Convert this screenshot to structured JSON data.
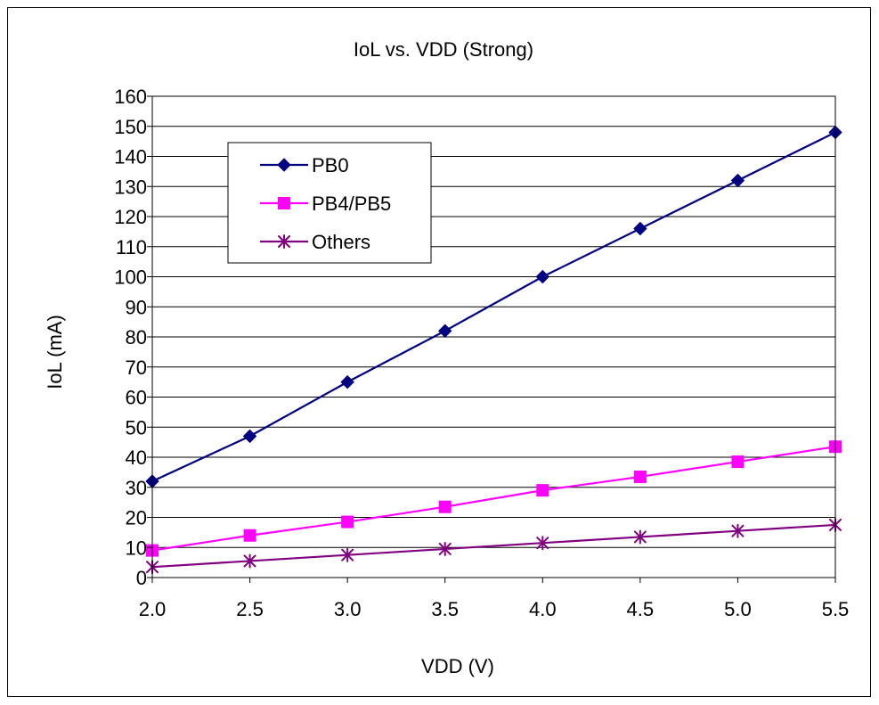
{
  "chart_data": {
    "type": "line",
    "title": "IoL vs. VDD (Strong)",
    "xlabel": "VDD (V)",
    "ylabel": "IoL (mA)",
    "x": [
      2.0,
      2.5,
      3.0,
      3.5,
      4.0,
      4.5,
      5.0,
      5.5
    ],
    "x_tick_labels": [
      "2.0",
      "2.5",
      "3.0",
      "3.5",
      "4.0",
      "4.5",
      "5.0",
      "5.5"
    ],
    "xlim": [
      2.0,
      5.5
    ],
    "ylim": [
      0,
      160
    ],
    "y_ticks": [
      0,
      10,
      20,
      30,
      40,
      50,
      60,
      70,
      80,
      90,
      100,
      110,
      120,
      130,
      140,
      150,
      160
    ],
    "grid": "horizontal",
    "legend_position": "top-left inside plot",
    "series": [
      {
        "name": "PB0",
        "color": "#000080",
        "marker": "diamond",
        "values": [
          32,
          47,
          65,
          82,
          100,
          116,
          132,
          148
        ]
      },
      {
        "name": "PB4/PB5",
        "color": "#FF00FF",
        "marker": "square",
        "values": [
          9,
          14,
          18.5,
          23.5,
          29,
          33.5,
          38.5,
          43.5
        ]
      },
      {
        "name": "Others",
        "color": "#800080",
        "marker": "asterisk",
        "values": [
          3.5,
          5.5,
          7.5,
          9.5,
          11.5,
          13.5,
          15.5,
          17.5
        ]
      }
    ]
  }
}
